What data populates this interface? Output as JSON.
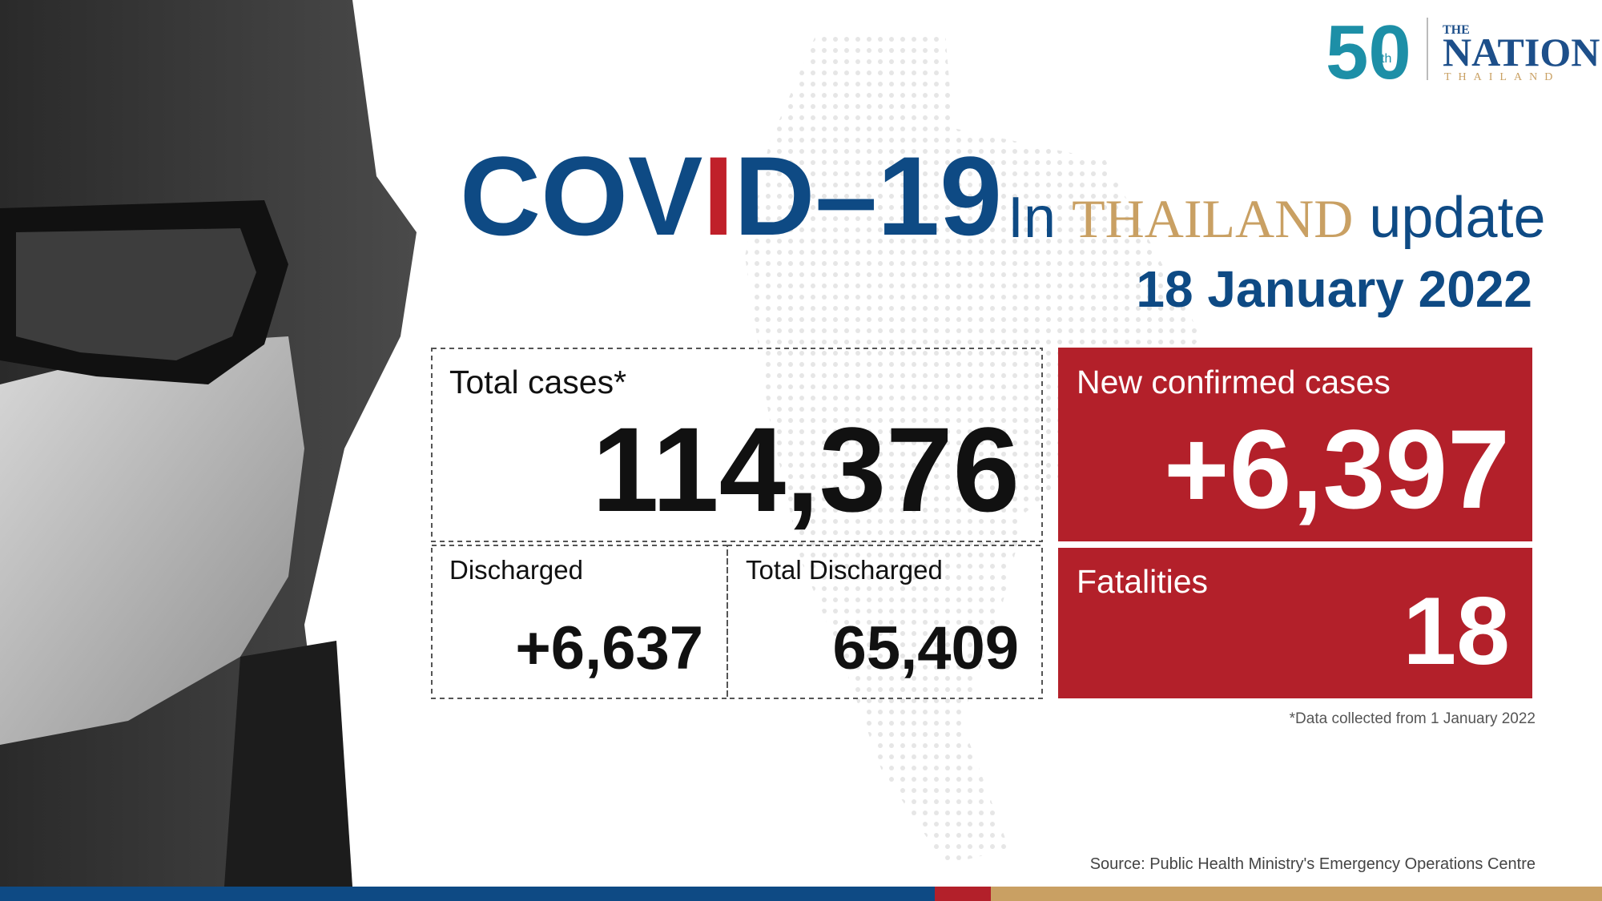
{
  "logo": {
    "anniversary": "50",
    "anniversary_suffix": "th",
    "the": "THE",
    "name": "NATION",
    "country": "THAILAND"
  },
  "header": {
    "covid_start": "COV",
    "covid_i": "I",
    "covid_end": "D–19",
    "in": "In",
    "country": "THAILAND",
    "update": "update",
    "date": "18 January 2022"
  },
  "stats": {
    "total_cases": {
      "label": "Total cases*",
      "value": "114,376"
    },
    "discharged": {
      "label": "Discharged",
      "value": "+6,637"
    },
    "total_discharged": {
      "label": "Total Discharged",
      "value": "65,409"
    },
    "new_cases": {
      "label": "New confirmed cases",
      "value": "+6,397"
    },
    "fatalities": {
      "label": "Fatalities",
      "value": "18"
    }
  },
  "footnote": "*Data collected from 1 January 2022",
  "source": "Source: Public Health Ministry's Emergency Operations Centre"
}
